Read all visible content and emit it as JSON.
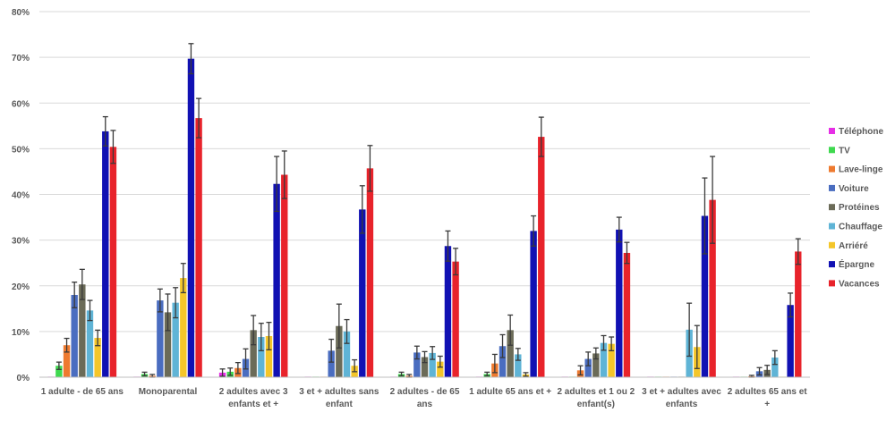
{
  "chart_data": {
    "type": "bar",
    "ylim": [
      0,
      80
    ],
    "yticks": [
      "0%",
      "10%",
      "20%",
      "30%",
      "40%",
      "50%",
      "60%",
      "70%",
      "80%"
    ],
    "ytick_values": [
      0,
      10,
      20,
      30,
      40,
      50,
      60,
      70,
      80
    ],
    "grid": true,
    "legend_position": "right",
    "categories": [
      [
        "1 adulte - de 65 ans"
      ],
      [
        "Monoparental"
      ],
      [
        "2 adultes avec 3",
        "enfants et +"
      ],
      [
        "3 et + adultes sans",
        "enfant"
      ],
      [
        "2 adultes - de 65",
        "ans"
      ],
      [
        "1 adulte 65 ans et +"
      ],
      [
        "2 adultes et 1 ou 2",
        "enfant(s)"
      ],
      [
        "3 et + adultes avec",
        "enfants"
      ],
      [
        "2 adultes 65 ans et",
        "+"
      ]
    ],
    "series": [
      {
        "name": "Téléphone",
        "color": "#e62ee6",
        "values": [
          0,
          0,
          1.0,
          0,
          0,
          0,
          0,
          0,
          0
        ],
        "errors": [
          0,
          0,
          0.8,
          0,
          0,
          0,
          0,
          0,
          0
        ]
      },
      {
        "name": "TV",
        "color": "#3fd94f",
        "values": [
          2.5,
          0.7,
          1.2,
          0,
          0.7,
          0.7,
          0,
          0,
          0
        ],
        "errors": [
          0.8,
          0.4,
          0.8,
          0,
          0.4,
          0.4,
          0,
          0,
          0
        ]
      },
      {
        "name": "Lave-linge",
        "color": "#ee7a2f",
        "values": [
          7.0,
          0.3,
          2.0,
          0,
          0.3,
          3.0,
          1.5,
          0,
          0.2
        ],
        "errors": [
          1.5,
          0.3,
          1.2,
          0,
          0.3,
          2.0,
          1.0,
          0,
          0.2
        ]
      },
      {
        "name": "Voiture",
        "color": "#4a6dc0",
        "values": [
          18.0,
          16.8,
          4.0,
          5.8,
          5.4,
          6.8,
          4.0,
          0,
          1.3
        ],
        "errors": [
          2.8,
          2.5,
          2.2,
          2.5,
          1.4,
          2.5,
          1.5,
          0,
          0.8
        ]
      },
      {
        "name": "Protéines",
        "color": "#6b6b58",
        "values": [
          20.3,
          14.2,
          10.3,
          11.2,
          4.4,
          10.3,
          5.2,
          0,
          1.6
        ],
        "errors": [
          3.3,
          4.0,
          3.2,
          4.8,
          1.2,
          3.3,
          1.2,
          0,
          1.0
        ]
      },
      {
        "name": "Chauffage",
        "color": "#5fb4d6",
        "values": [
          14.6,
          16.3,
          8.8,
          10.0,
          5.3,
          5.0,
          7.5,
          10.4,
          4.3
        ],
        "errors": [
          2.2,
          3.3,
          3.0,
          2.6,
          1.4,
          1.3,
          1.6,
          5.8,
          1.5
        ]
      },
      {
        "name": "Arriéré",
        "color": "#f4c62a",
        "values": [
          8.6,
          21.7,
          9.0,
          2.5,
          3.4,
          0.6,
          7.3,
          6.6,
          0
        ],
        "errors": [
          1.7,
          3.2,
          3.0,
          1.3,
          1.2,
          0.4,
          1.5,
          4.7,
          0
        ]
      },
      {
        "name": "Épargne",
        "color": "#1111b3",
        "values": [
          53.8,
          69.7,
          42.3,
          36.7,
          28.7,
          32.0,
          32.3,
          35.3,
          15.8
        ],
        "errors": [
          3.2,
          3.3,
          6.0,
          5.2,
          3.3,
          3.3,
          2.7,
          8.3,
          2.6
        ]
      },
      {
        "name": "Vacances",
        "color": "#e8232b",
        "values": [
          50.4,
          56.7,
          44.3,
          45.7,
          25.3,
          52.6,
          27.2,
          38.8,
          27.5
        ],
        "errors": [
          3.6,
          4.3,
          5.2,
          5.0,
          2.9,
          4.3,
          2.3,
          9.5,
          2.8
        ]
      }
    ]
  }
}
